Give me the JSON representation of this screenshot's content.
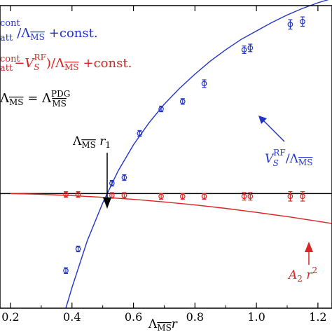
{
  "chart_data": {
    "type": "scatter",
    "xlabel": "Λ_MS r",
    "xlim": [
      0.2,
      1.28
    ],
    "ylim": [
      -1.22,
      2.0
    ],
    "x_ticks": [
      "0.2",
      "0.4",
      "0.6",
      "0.8",
      "1.0",
      "1.2"
    ],
    "tick_values": [
      0.2,
      0.4,
      0.6,
      0.8,
      1.0,
      1.2
    ],
    "reference_line": {
      "y": 0.0,
      "color": "#000000"
    },
    "legend": {
      "blue_text_a": "cont",
      "blue_text_b": "att",
      "blue_text_c": "/Λ",
      "blue_text_d": "MS",
      "blue_text_e": "+const.",
      "red_text_a": "cont",
      "red_text_b": "att",
      "red_text_c": "−V",
      "red_text_d": "S",
      "red_text_e": "RF",
      "red_text_f": ")/Λ",
      "red_text_g": "MS",
      "red_text_h": "+const.",
      "black_text_a": "Λ",
      "black_text_b": "MS",
      "black_text_c": " = Λ",
      "black_text_d": "PDG",
      "black_text_e": "MS"
    },
    "annotations": {
      "lambda_r1": {
        "a": "Λ",
        "b": "MS",
        "c": " r",
        "d": "1"
      },
      "blue_label": {
        "a": "V",
        "b": "RF",
        "c": "S",
        "d": "/Λ",
        "e": "MS"
      },
      "red_label": {
        "a": "A",
        "b": "2",
        "c": " r",
        "d": "2"
      }
    },
    "series": [
      {
        "color": "#2233cc",
        "points": [
          {
            "x": 0.38,
            "y": -0.82,
            "err": 0.03
          },
          {
            "x": 0.42,
            "y": -0.59,
            "err": 0.03
          },
          {
            "x": 0.53,
            "y": 0.11,
            "err": 0.03
          },
          {
            "x": 0.57,
            "y": 0.17,
            "err": 0.03
          },
          {
            "x": 0.62,
            "y": 0.64,
            "err": 0.03
          },
          {
            "x": 0.69,
            "y": 0.9,
            "err": 0.03
          },
          {
            "x": 0.76,
            "y": 0.98,
            "err": 0.03
          },
          {
            "x": 0.83,
            "y": 1.17,
            "err": 0.04
          },
          {
            "x": 0.96,
            "y": 1.53,
            "err": 0.04
          },
          {
            "x": 0.98,
            "y": 1.55,
            "err": 0.04
          },
          {
            "x": 1.11,
            "y": 1.8,
            "err": 0.05
          },
          {
            "x": 1.15,
            "y": 1.83,
            "err": 0.05
          },
          {
            "x": 1.26,
            "y": 2.06,
            "err": 0.06
          }
        ],
        "curve": [
          [
            0.38,
            -1.22
          ],
          [
            0.4,
            -1.0
          ],
          [
            0.45,
            -0.5
          ],
          [
            0.5,
            -0.1
          ],
          [
            0.55,
            0.24
          ],
          [
            0.6,
            0.52
          ],
          [
            0.65,
            0.75
          ],
          [
            0.7,
            0.95
          ],
          [
            0.75,
            1.12
          ],
          [
            0.8,
            1.27
          ],
          [
            0.85,
            1.41
          ],
          [
            0.9,
            1.53
          ],
          [
            0.95,
            1.64
          ],
          [
            1.0,
            1.73
          ],
          [
            1.05,
            1.82
          ],
          [
            1.1,
            1.9
          ],
          [
            1.15,
            1.97
          ],
          [
            1.2,
            2.03
          ],
          [
            1.25,
            2.08
          ],
          [
            1.28,
            2.11
          ]
        ]
      },
      {
        "color": "#dd2222",
        "points": [
          {
            "x": 0.38,
            "y": -0.01,
            "err": 0.02
          },
          {
            "x": 0.42,
            "y": -0.01,
            "err": 0.02
          },
          {
            "x": 0.53,
            "y": -0.02,
            "err": 0.02
          },
          {
            "x": 0.57,
            "y": -0.02,
            "err": 0.02
          },
          {
            "x": 0.69,
            "y": -0.03,
            "err": 0.02
          },
          {
            "x": 0.76,
            "y": -0.03,
            "err": 0.02
          },
          {
            "x": 0.83,
            "y": -0.03,
            "err": 0.03
          },
          {
            "x": 0.96,
            "y": -0.03,
            "err": 0.04
          },
          {
            "x": 0.98,
            "y": -0.03,
            "err": 0.04
          },
          {
            "x": 1.11,
            "y": -0.03,
            "err": 0.05
          },
          {
            "x": 1.15,
            "y": -0.03,
            "err": 0.05
          },
          {
            "x": 1.26,
            "y": -0.03,
            "err": 0.06
          }
        ],
        "curve": [
          [
            0.2,
            0.0
          ],
          [
            0.3,
            -0.008
          ],
          [
            0.4,
            -0.022
          ],
          [
            0.5,
            -0.04
          ],
          [
            0.6,
            -0.062
          ],
          [
            0.7,
            -0.089
          ],
          [
            0.8,
            -0.121
          ],
          [
            0.9,
            -0.158
          ],
          [
            1.0,
            -0.2
          ],
          [
            1.1,
            -0.245
          ],
          [
            1.2,
            -0.295
          ],
          [
            1.28,
            -0.336
          ]
        ]
      }
    ]
  }
}
